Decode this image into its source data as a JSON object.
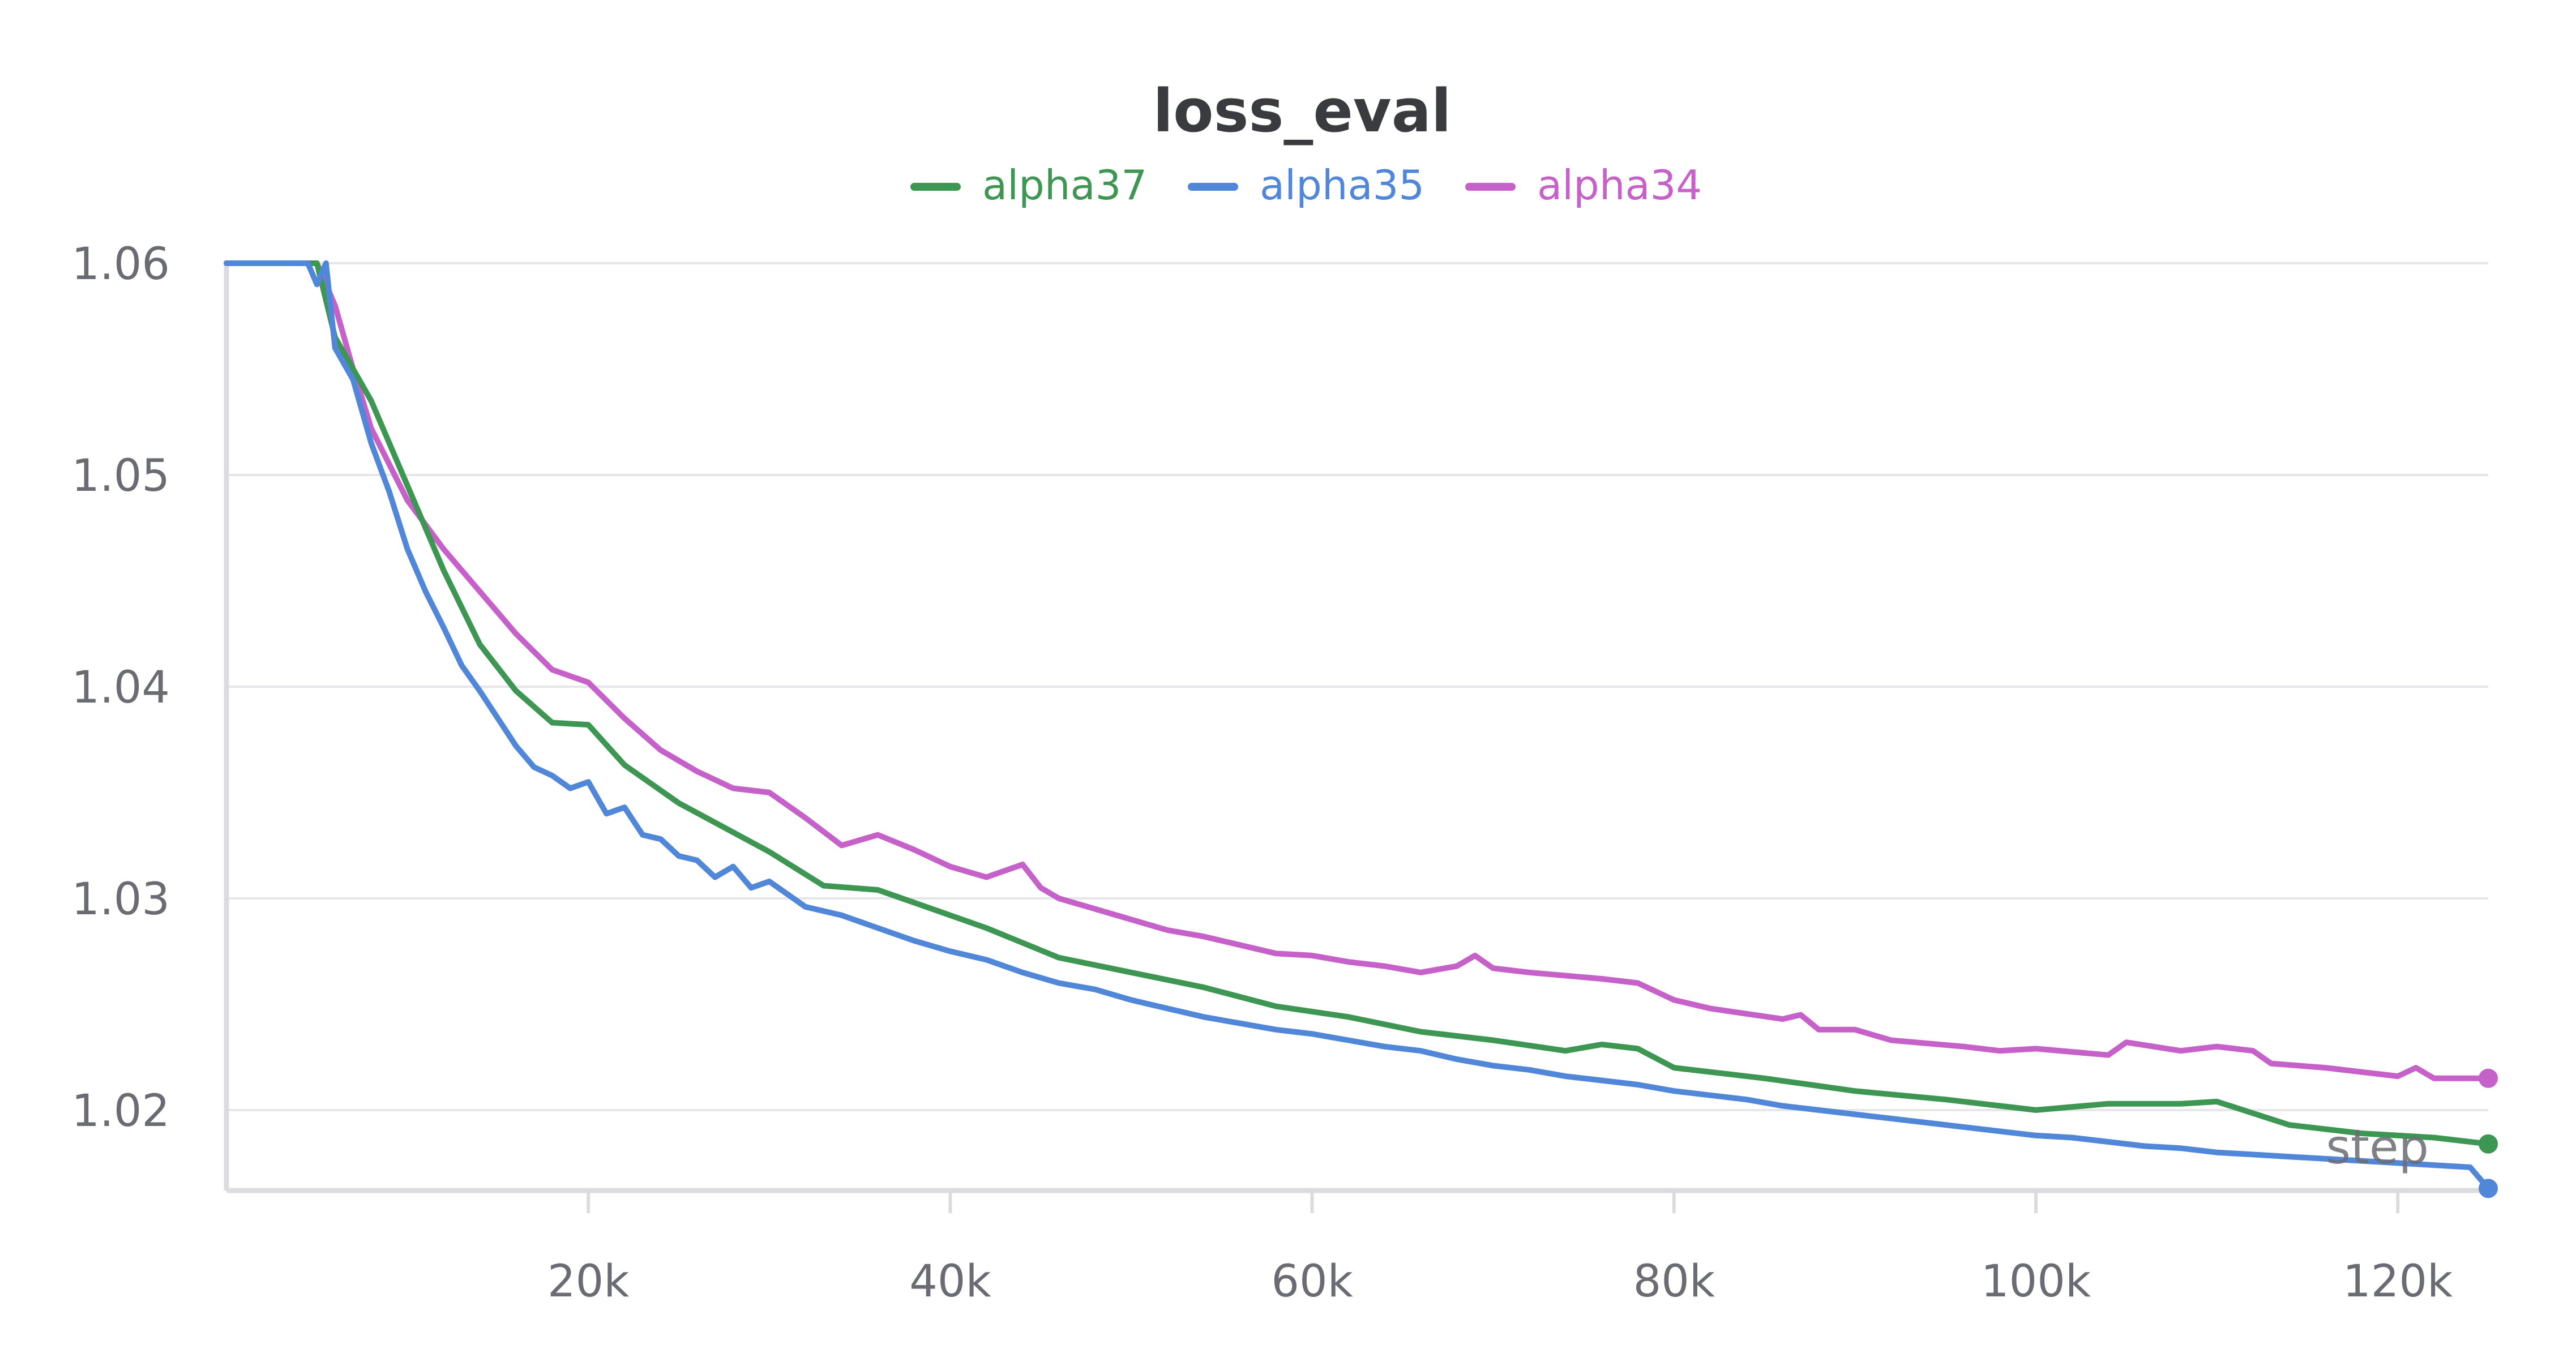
{
  "chart_data": {
    "type": "line",
    "title": "loss_eval",
    "xlabel": "step",
    "ylabel": "",
    "xlim": [
      0,
      125000
    ],
    "ylim": [
      1.0162,
      1.06
    ],
    "x_ticks": [
      {
        "value": 20000,
        "label": "20k"
      },
      {
        "value": 40000,
        "label": "40k"
      },
      {
        "value": 60000,
        "label": "60k"
      },
      {
        "value": 80000,
        "label": "80k"
      },
      {
        "value": 100000,
        "label": "100k"
      },
      {
        "value": 120000,
        "label": "120k"
      }
    ],
    "y_ticks": [
      {
        "value": 1.02,
        "label": "1.02"
      },
      {
        "value": 1.03,
        "label": "1.03"
      },
      {
        "value": 1.04,
        "label": "1.04"
      },
      {
        "value": 1.05,
        "label": "1.05"
      },
      {
        "value": 1.06,
        "label": "1.06"
      }
    ],
    "grid": true,
    "legend_position": "top-center",
    "series": [
      {
        "name": "alpha37",
        "color": "#3d9652",
        "x": [
          0,
          5000,
          6000,
          8000,
          10000,
          12000,
          14000,
          16000,
          18000,
          20000,
          22000,
          25000,
          30000,
          33000,
          36000,
          38000,
          42000,
          46000,
          50000,
          54000,
          58000,
          62000,
          66000,
          70000,
          74000,
          76000,
          78000,
          80000,
          85000,
          90000,
          95000,
          100000,
          104000,
          108000,
          110000,
          114000,
          118000,
          122000,
          125000
        ],
        "y": [
          1.06,
          1.06,
          1.0565,
          1.0535,
          1.0495,
          1.0455,
          1.042,
          1.0398,
          1.0383,
          1.0382,
          1.0363,
          1.0345,
          1.0322,
          1.0306,
          1.0304,
          1.0298,
          1.0286,
          1.0272,
          1.0265,
          1.0258,
          1.0249,
          1.0244,
          1.0237,
          1.0233,
          1.0228,
          1.0231,
          1.0229,
          1.022,
          1.0215,
          1.0209,
          1.0205,
          1.02,
          1.0203,
          1.0203,
          1.0204,
          1.0193,
          1.0189,
          1.0187,
          1.0184
        ]
      },
      {
        "name": "alpha35",
        "color": "#5087d8",
        "x": [
          0,
          4500,
          5000,
          5500,
          6000,
          7000,
          8000,
          9000,
          10000,
          11000,
          12000,
          13000,
          14000,
          15000,
          16000,
          17000,
          18000,
          19000,
          20000,
          21000,
          22000,
          23000,
          24000,
          25000,
          26000,
          27000,
          28000,
          29000,
          30000,
          32000,
          34000,
          36000,
          38000,
          40000,
          42000,
          44000,
          46000,
          48000,
          50000,
          52000,
          54000,
          56000,
          58000,
          60000,
          62000,
          64000,
          66000,
          68000,
          70000,
          72000,
          74000,
          76000,
          78000,
          80000,
          82000,
          84000,
          86000,
          88000,
          90000,
          92000,
          94000,
          96000,
          98000,
          100000,
          102000,
          104000,
          106000,
          108000,
          110000,
          112000,
          114000,
          116000,
          118000,
          120000,
          122000,
          124000,
          125000
        ],
        "y": [
          1.06,
          1.06,
          1.059,
          1.06,
          1.056,
          1.0545,
          1.0515,
          1.0492,
          1.0465,
          1.0445,
          1.0428,
          1.041,
          1.0398,
          1.0385,
          1.0372,
          1.0362,
          1.0358,
          1.0352,
          1.0355,
          1.034,
          1.0343,
          1.033,
          1.0328,
          1.032,
          1.0318,
          1.031,
          1.0315,
          1.0305,
          1.0308,
          1.0296,
          1.0292,
          1.0286,
          1.028,
          1.0275,
          1.0271,
          1.0265,
          1.026,
          1.0257,
          1.0252,
          1.0248,
          1.0244,
          1.0241,
          1.0238,
          1.0236,
          1.0233,
          1.023,
          1.0228,
          1.0224,
          1.0221,
          1.0219,
          1.0216,
          1.0214,
          1.0212,
          1.0209,
          1.0207,
          1.0205,
          1.0202,
          1.02,
          1.0198,
          1.0196,
          1.0194,
          1.0192,
          1.019,
          1.0188,
          1.0187,
          1.0185,
          1.0183,
          1.0182,
          1.018,
          1.0179,
          1.0178,
          1.0177,
          1.0176,
          1.0175,
          1.0174,
          1.0173,
          1.0163
        ]
      },
      {
        "name": "alpha34",
        "color": "#c561c9",
        "x": [
          0,
          5000,
          6000,
          7000,
          8000,
          9000,
          10000,
          12000,
          14000,
          16000,
          18000,
          20000,
          22000,
          24000,
          26000,
          28000,
          30000,
          32000,
          34000,
          36000,
          38000,
          40000,
          42000,
          44000,
          45000,
          46000,
          48000,
          50000,
          52000,
          54000,
          56000,
          58000,
          60000,
          62000,
          64000,
          66000,
          68000,
          69000,
          70000,
          72000,
          76000,
          78000,
          80000,
          82000,
          86000,
          87000,
          88000,
          90000,
          92000,
          96000,
          98000,
          100000,
          104000,
          105000,
          108000,
          110000,
          112000,
          113000,
          116000,
          118000,
          120000,
          121000,
          122000,
          125000
        ],
        "y": [
          1.06,
          1.06,
          1.058,
          1.055,
          1.0522,
          1.0505,
          1.0488,
          1.0465,
          1.0445,
          1.0425,
          1.0408,
          1.0402,
          1.0385,
          1.037,
          1.036,
          1.0352,
          1.035,
          1.0338,
          1.0325,
          1.033,
          1.0323,
          1.0315,
          1.031,
          1.0316,
          1.0305,
          1.03,
          1.0295,
          1.029,
          1.0285,
          1.0282,
          1.0278,
          1.0274,
          1.0273,
          1.027,
          1.0268,
          1.0265,
          1.0268,
          1.0273,
          1.0267,
          1.0265,
          1.0262,
          1.026,
          1.0252,
          1.0248,
          1.0243,
          1.0245,
          1.0238,
          1.0238,
          1.0233,
          1.023,
          1.0228,
          1.0229,
          1.0226,
          1.0232,
          1.0228,
          1.023,
          1.0228,
          1.0222,
          1.022,
          1.0218,
          1.0216,
          1.022,
          1.0215,
          1.0215
        ]
      }
    ]
  }
}
